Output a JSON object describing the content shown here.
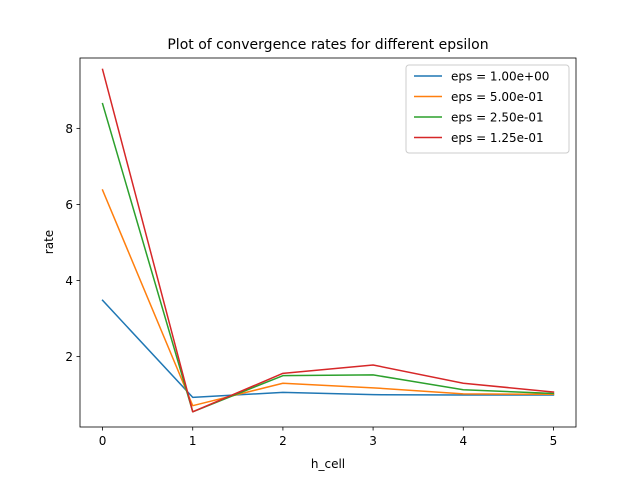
{
  "chart_data": {
    "type": "line",
    "title": "Plot of convergence rates for different epsilon",
    "xlabel": "h_cell",
    "ylabel": "rate",
    "x": [
      0,
      1,
      2,
      3,
      4,
      5
    ],
    "xlim": [
      -0.25,
      5.25
    ],
    "ylim": [
      0.15,
      9.85
    ],
    "xticks": [
      0,
      1,
      2,
      3,
      4,
      5
    ],
    "yticks": [
      2,
      4,
      6,
      8
    ],
    "grid": false,
    "legend_position": "top-right",
    "series": [
      {
        "name": "eps = 1.00e+00",
        "color": "#1f77b4",
        "values": [
          3.48,
          0.93,
          1.06,
          1.0,
          0.99,
          0.99
        ]
      },
      {
        "name": "eps = 5.00e-01",
        "color": "#ff7f0e",
        "values": [
          6.38,
          0.71,
          1.3,
          1.18,
          1.02,
          1.01
        ]
      },
      {
        "name": "eps = 2.50e-01",
        "color": "#2ca02c",
        "values": [
          8.65,
          0.55,
          1.5,
          1.52,
          1.13,
          1.03
        ]
      },
      {
        "name": "eps = 1.25e-01",
        "color": "#d62728",
        "values": [
          9.55,
          0.55,
          1.56,
          1.78,
          1.3,
          1.07
        ]
      }
    ]
  }
}
